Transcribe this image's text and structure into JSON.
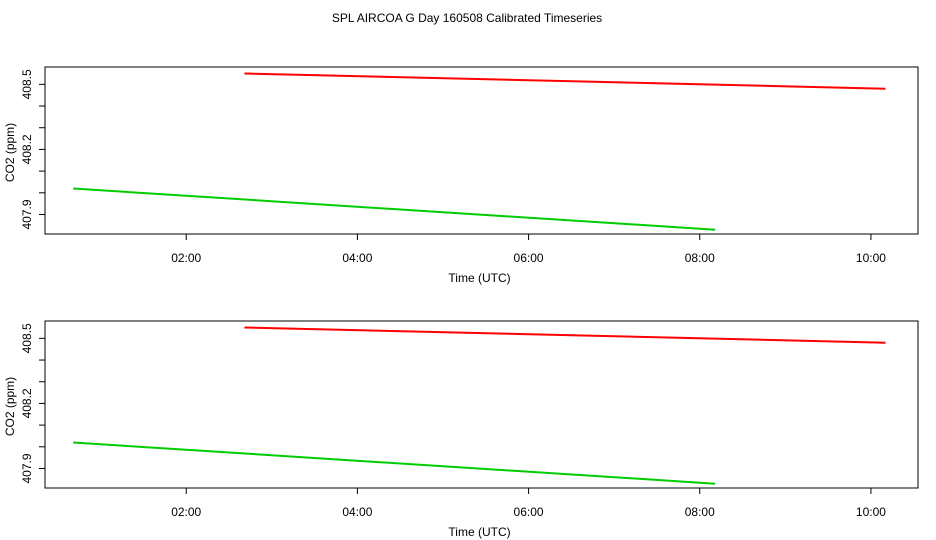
{
  "title": "SPL AIRCOA G  Day 160508  Calibrated Timeseries",
  "colors": {
    "background": "#ffffff",
    "axis": "#000000",
    "series_red": "#ff0000",
    "series_green": "#00cc00"
  },
  "chart_data": [
    {
      "type": "line",
      "xlabel": "Time (UTC)",
      "ylabel": "CO2 (ppm)",
      "xlim": [
        0.35,
        10.55
      ],
      "ylim": [
        407.81,
        408.58
      ],
      "xticks": [
        2,
        4,
        6,
        8,
        10
      ],
      "xtick_labels": [
        "02:00",
        "04:00",
        "06:00",
        "08:00",
        "10:00"
      ],
      "yticks": [
        407.9,
        408.0,
        408.1,
        408.2,
        408.3,
        408.4,
        408.5
      ],
      "ytick_labels": [
        "407.9",
        "",
        "",
        "408.2",
        "",
        "",
        "408.5"
      ],
      "series": [
        {
          "name": "red",
          "color": "#ff0000",
          "x": [
            2.68,
            10.17
          ],
          "y": [
            408.55,
            408.48
          ]
        },
        {
          "name": "green",
          "color": "#00cc00",
          "x": [
            0.68,
            8.18
          ],
          "y": [
            408.02,
            407.83
          ]
        }
      ]
    },
    {
      "type": "line",
      "xlabel": "Time (UTC)",
      "ylabel": "CO2 (ppm)",
      "xlim": [
        0.35,
        10.55
      ],
      "ylim": [
        407.81,
        408.58
      ],
      "xticks": [
        2,
        4,
        6,
        8,
        10
      ],
      "xtick_labels": [
        "02:00",
        "04:00",
        "06:00",
        "08:00",
        "10:00"
      ],
      "yticks": [
        407.9,
        408.0,
        408.1,
        408.2,
        408.3,
        408.4,
        408.5
      ],
      "ytick_labels": [
        "407.9",
        "",
        "",
        "408.2",
        "",
        "",
        "408.5"
      ],
      "series": [
        {
          "name": "red",
          "color": "#ff0000",
          "x": [
            2.68,
            10.17
          ],
          "y": [
            408.55,
            408.48
          ]
        },
        {
          "name": "green",
          "color": "#00cc00",
          "x": [
            0.68,
            8.18
          ],
          "y": [
            408.02,
            407.83
          ]
        }
      ]
    }
  ]
}
